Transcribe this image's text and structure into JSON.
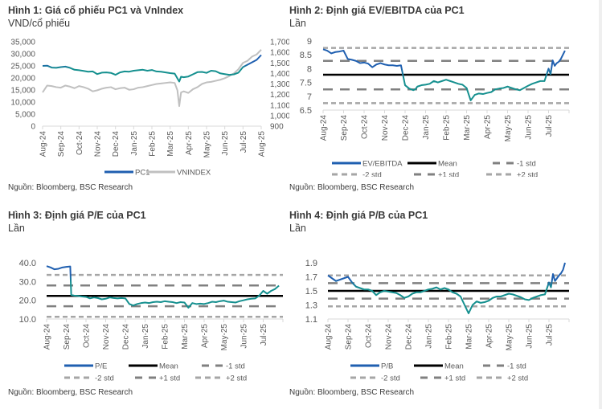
{
  "page": {
    "source_text": "Nguồn: Bloomberg, BSC Research"
  },
  "colors": {
    "series_blue": "#1f5fb0",
    "series_teal": "#15908f",
    "vnindex": "#c0c0c0",
    "mean": "#000000",
    "std1": "#808080",
    "std2": "#a6a6a6",
    "axis": "#d9d9d9"
  },
  "chart_data": [
    {
      "id": "fig1",
      "type": "line",
      "title": "Hình 1: Giá cổ phiếu PC1 và VnIndex",
      "subtitle": "VND/cổ phiếu",
      "source": "Nguồn: Bloomberg, BSC Research",
      "xlabel": "",
      "ylabel": "VND/cổ phiếu",
      "x_ticks": [
        "Aug-24",
        "Sep-24",
        "Oct-24",
        "Nov-24",
        "Dec-24",
        "Jan-25",
        "Feb-25",
        "Mar-25",
        "Apr-25",
        "May-25",
        "Jun-25",
        "Jul-25",
        "Aug-25"
      ],
      "y_left": {
        "ticks": [
          "0",
          "5,000",
          "10,000",
          "15,000",
          "20,000",
          "25,000",
          "30,000",
          "35,000"
        ],
        "range": [
          0,
          35000
        ]
      },
      "y_right": {
        "ticks": [
          "900",
          "1,000",
          "1,100",
          "1,200",
          "1,300",
          "1,400",
          "1,500",
          "1,600",
          "1,700"
        ],
        "range": [
          900,
          1700
        ]
      },
      "legend": [
        "PC1",
        "VNINDEX"
      ],
      "legend_position": "bottom",
      "series": [
        {
          "name": "PC1",
          "axis": "left",
          "x": [
            0,
            0.25,
            0.5,
            0.75,
            1,
            1.25,
            1.5,
            1.75,
            2,
            2.25,
            2.5,
            2.75,
            3,
            3.25,
            3.5,
            3.75,
            4,
            4.25,
            4.5,
            4.75,
            5,
            5.25,
            5.5,
            5.75,
            6,
            6.25,
            6.5,
            6.75,
            7,
            7.25,
            7.5,
            7.6,
            7.75,
            8,
            8.25,
            8.5,
            8.75,
            9,
            9.25,
            9.5,
            9.75,
            10,
            10.25,
            10.5,
            10.75,
            11,
            11.25,
            11.5,
            11.75,
            12
          ],
          "values": [
            25000,
            25100,
            24300,
            24200,
            24500,
            24700,
            24200,
            23400,
            23200,
            22900,
            22600,
            22700,
            21600,
            22200,
            22300,
            22100,
            21300,
            22300,
            22700,
            22600,
            23000,
            23200,
            23400,
            23000,
            23300,
            22700,
            22600,
            22300,
            22000,
            21800,
            18500,
            20500,
            20300,
            20600,
            21500,
            22400,
            22500,
            22100,
            23000,
            22800,
            21900,
            21600,
            21300,
            21500,
            22200,
            24500,
            25500,
            26500,
            27500,
            29500
          ]
        },
        {
          "name": "VNINDEX",
          "axis": "right",
          "x": [
            0,
            0.25,
            0.5,
            0.75,
            1,
            1.25,
            1.5,
            1.75,
            2,
            2.25,
            2.5,
            2.75,
            3,
            3.25,
            3.5,
            3.75,
            4,
            4.25,
            4.5,
            4.75,
            5,
            5.25,
            5.5,
            5.75,
            6,
            6.25,
            6.5,
            6.75,
            7,
            7.25,
            7.4,
            7.5,
            7.6,
            7.75,
            8,
            8.25,
            8.5,
            8.75,
            9,
            9.25,
            9.5,
            9.75,
            10,
            10.25,
            10.5,
            10.75,
            11,
            11.25,
            11.5,
            11.75,
            12
          ],
          "values": [
            1220,
            1285,
            1280,
            1270,
            1265,
            1285,
            1275,
            1260,
            1280,
            1270,
            1255,
            1230,
            1240,
            1255,
            1265,
            1270,
            1250,
            1260,
            1265,
            1245,
            1250,
            1265,
            1270,
            1280,
            1290,
            1300,
            1305,
            1310,
            1315,
            1310,
            1240,
            1090,
            1220,
            1230,
            1215,
            1250,
            1270,
            1300,
            1315,
            1320,
            1330,
            1340,
            1355,
            1375,
            1400,
            1440,
            1500,
            1520,
            1560,
            1580,
            1625
          ]
        }
      ]
    },
    {
      "id": "fig2",
      "type": "line",
      "title": "Hình 2: Định giá EV/EBITDA của PC1",
      "subtitle": "Lần",
      "source": "Nguồn: Bloomberg, BSC Research",
      "x_ticks": [
        "Aug-24",
        "Sep-24",
        "Oct-24",
        "Nov-24",
        "Dec-24",
        "Jan-25",
        "Feb-25",
        "Mar-25",
        "Apr-25",
        "May-25",
        "Jun-25",
        "Jul-25"
      ],
      "y": {
        "ticks": [
          "6.5",
          "7",
          "7.5",
          "8",
          "8.5",
          "9"
        ],
        "range": [
          6.5,
          9
        ]
      },
      "legend": [
        "EV/EBITDA",
        "Mean",
        "-1 std",
        "-2 std",
        "+1 std",
        "+2 std"
      ],
      "legend_position": "bottom",
      "mean": 7.78,
      "std_lines": {
        "minus1": 7.25,
        "minus2": 6.75,
        "plus1": 8.28,
        "plus2": 8.75
      },
      "series": [
        {
          "name": "EV/EBITDA",
          "x": [
            0,
            0.2,
            0.4,
            0.6,
            0.8,
            1,
            1.2,
            1.4,
            1.6,
            1.8,
            2,
            2.2,
            2.4,
            2.6,
            2.8,
            3,
            3.2,
            3.4,
            3.6,
            3.8,
            4,
            4.2,
            4.4,
            4.5,
            4.6,
            4.8,
            5,
            5.2,
            5.4,
            5.6,
            5.8,
            6,
            6.2,
            6.4,
            6.6,
            6.8,
            7,
            7.2,
            7.4,
            7.6,
            7.8,
            8,
            8.2,
            8.4,
            8.6,
            8.8,
            9,
            9.2,
            9.4,
            9.6,
            9.8,
            10,
            10.2,
            10.4,
            10.6,
            10.8,
            11,
            11.1,
            11.2,
            11.3,
            11.4,
            11.5,
            11.6,
            11.7,
            11.8
          ],
          "values": [
            8.7,
            8.65,
            8.55,
            8.6,
            8.62,
            8.65,
            8.35,
            8.32,
            8.28,
            8.2,
            8.22,
            8.18,
            8.05,
            8.15,
            8.2,
            8.15,
            8.12,
            8.12,
            8.1,
            8.12,
            7.4,
            7.28,
            7.22,
            7.25,
            7.35,
            7.4,
            7.42,
            7.45,
            7.55,
            7.5,
            7.55,
            7.6,
            7.55,
            7.5,
            7.45,
            7.42,
            7.3,
            6.85,
            7.05,
            7.1,
            7.08,
            7.12,
            7.15,
            7.25,
            7.28,
            7.3,
            7.35,
            7.3,
            7.25,
            7.22,
            7.3,
            7.38,
            7.45,
            7.5,
            7.55,
            7.55,
            8.0,
            7.8,
            8.3,
            8.1,
            8.2,
            8.25,
            8.35,
            8.5,
            8.65
          ]
        }
      ]
    },
    {
      "id": "fig3",
      "type": "line",
      "title": "Hình 3: Định giá P/E của PC1",
      "subtitle": "Lần",
      "source": "Nguồn: Bloomberg, BSC Research",
      "x_ticks": [
        "Aug-24",
        "Sep-24",
        "Oct-24",
        "Nov-24",
        "Dec-24",
        "Jan-25",
        "Feb-25",
        "Mar-25",
        "Apr-25",
        "May-25",
        "Jun-25",
        "Jul-25"
      ],
      "y": {
        "ticks": [
          "10.0",
          "20.0",
          "30.0",
          "40.0"
        ],
        "range": [
          10,
          40
        ]
      },
      "legend": [
        "P/E",
        "Mean",
        "-1 std",
        "-2 std",
        "+1 std",
        "+2 std"
      ],
      "legend_position": "bottom",
      "mean": 22.3,
      "std_lines": {
        "minus1": 16.8,
        "minus2": 11.2,
        "plus1": 27.9,
        "plus2": 33.5
      },
      "series": [
        {
          "name": "P/E",
          "x": [
            0,
            0.2,
            0.4,
            0.6,
            0.8,
            1,
            1.2,
            1.25,
            1.4,
            1.6,
            1.8,
            2,
            2.2,
            2.4,
            2.6,
            2.8,
            3,
            3.2,
            3.4,
            3.6,
            3.8,
            4,
            4.2,
            4.4,
            4.6,
            4.8,
            5,
            5.2,
            5.4,
            5.6,
            5.8,
            6,
            6.2,
            6.4,
            6.6,
            6.8,
            7,
            7.2,
            7.4,
            7.6,
            7.8,
            8,
            8.2,
            8.4,
            8.6,
            8.8,
            9,
            9.2,
            9.4,
            9.6,
            9.8,
            10,
            10.2,
            10.4,
            10.6,
            10.8,
            11,
            11.2,
            11.4,
            11.6,
            11.8
          ],
          "values": [
            38.2,
            37.5,
            36.5,
            36.8,
            37.5,
            37.8,
            38.0,
            22.8,
            22.5,
            22.3,
            22.0,
            21.8,
            21.0,
            21.5,
            21.2,
            20.5,
            20.8,
            21.5,
            21.2,
            21.0,
            21.2,
            21.0,
            18.0,
            17.2,
            18.0,
            18.5,
            18.8,
            18.5,
            19.0,
            19.2,
            19.0,
            19.5,
            19.2,
            19.0,
            18.5,
            19.0,
            18.8,
            16.0,
            18.5,
            18.0,
            18.2,
            18.0,
            18.5,
            19.2,
            19.0,
            19.5,
            19.8,
            19.2,
            19.0,
            18.8,
            19.5,
            20.0,
            20.5,
            20.8,
            21.0,
            22.5,
            25.0,
            23.5,
            25.0,
            26.0,
            27.8
          ]
        }
      ]
    },
    {
      "id": "fig4",
      "type": "line",
      "title": "Hình 4: Định giá P/B của PC1",
      "subtitle": "Lần",
      "source": "Nguồn: Bloomberg, BSC Research",
      "x_ticks": [
        "Aug-24",
        "Sep-24",
        "Oct-24",
        "Nov-24",
        "Dec-24",
        "Jan-25",
        "Feb-25",
        "Mar-25",
        "Apr-25",
        "May-25",
        "Jun-25",
        "Jul-25"
      ],
      "y": {
        "ticks": [
          "1.1",
          "1.3",
          "1.5",
          "1.7",
          "1.9"
        ],
        "range": [
          1.1,
          1.9
        ]
      },
      "legend": [
        "P/B",
        "Mean",
        "-1 std",
        "-2 std",
        "+1 std",
        "+2 std"
      ],
      "legend_position": "bottom",
      "mean": 1.5,
      "std_lines": {
        "minus1": 1.39,
        "minus2": 1.28,
        "plus1": 1.61,
        "plus2": 1.72
      },
      "series": [
        {
          "name": "P/B",
          "x": [
            0,
            0.2,
            0.4,
            0.6,
            0.8,
            1,
            1.2,
            1.4,
            1.6,
            1.8,
            2,
            2.2,
            2.4,
            2.6,
            2.8,
            3,
            3.2,
            3.4,
            3.6,
            3.8,
            4,
            4.2,
            4.4,
            4.6,
            4.8,
            5,
            5.2,
            5.4,
            5.6,
            5.8,
            6,
            6.2,
            6.4,
            6.6,
            6.8,
            7,
            7.2,
            7.4,
            7.6,
            7.8,
            8,
            8.2,
            8.4,
            8.6,
            8.8,
            9,
            9.2,
            9.4,
            9.6,
            9.8,
            10,
            10.2,
            10.4,
            10.6,
            10.8,
            11,
            11.1,
            11.2,
            11.3,
            11.4,
            11.5,
            11.6,
            11.7,
            11.8
          ],
          "values": [
            1.72,
            1.68,
            1.64,
            1.66,
            1.68,
            1.7,
            1.62,
            1.56,
            1.54,
            1.52,
            1.52,
            1.5,
            1.44,
            1.48,
            1.5,
            1.49,
            1.48,
            1.47,
            1.44,
            1.4,
            1.42,
            1.46,
            1.48,
            1.48,
            1.5,
            1.52,
            1.53,
            1.55,
            1.52,
            1.54,
            1.52,
            1.48,
            1.46,
            1.42,
            1.3,
            1.18,
            1.3,
            1.35,
            1.33,
            1.34,
            1.36,
            1.4,
            1.42,
            1.42,
            1.44,
            1.46,
            1.45,
            1.43,
            1.41,
            1.38,
            1.37,
            1.4,
            1.42,
            1.44,
            1.45,
            1.62,
            1.55,
            1.74,
            1.64,
            1.68,
            1.72,
            1.75,
            1.8,
            1.9
          ]
        }
      ]
    }
  ]
}
